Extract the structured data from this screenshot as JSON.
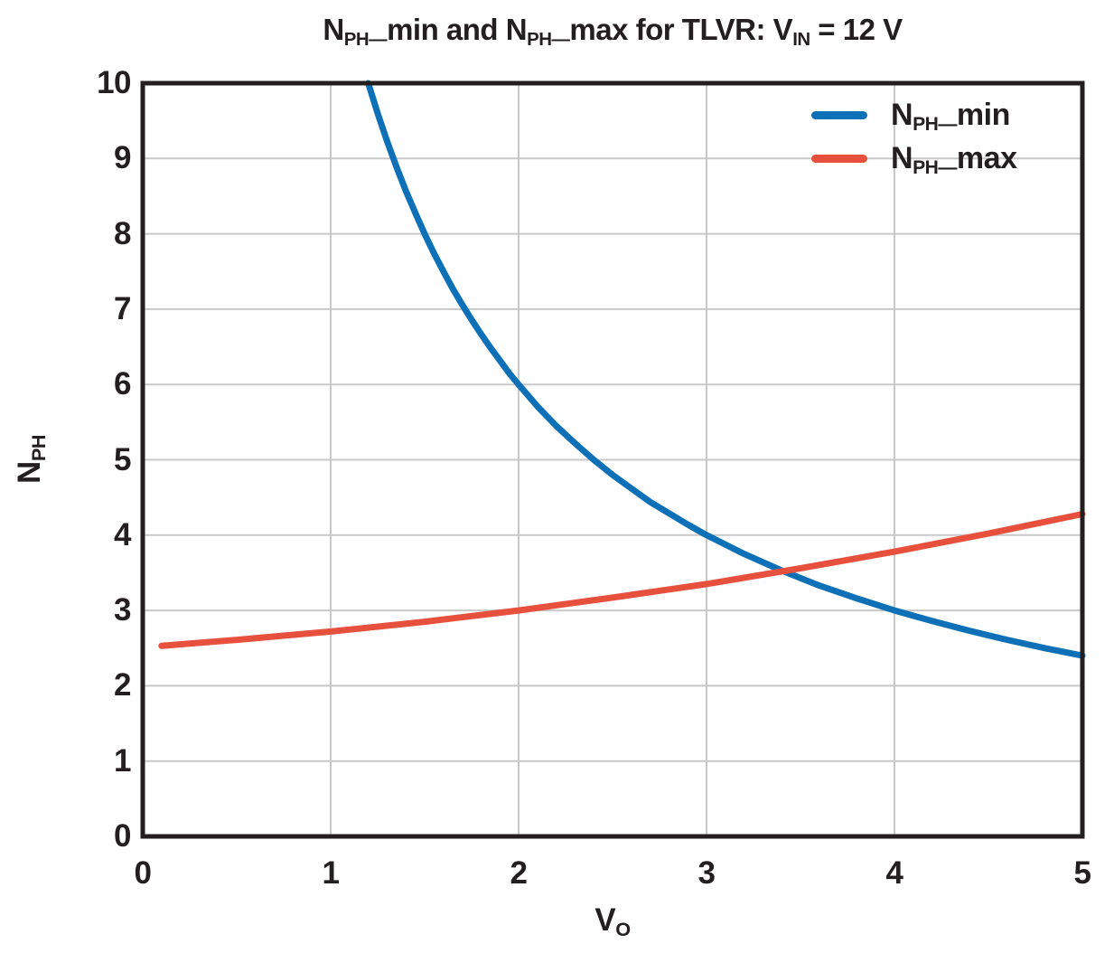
{
  "page": {
    "background": "#ffffff",
    "text_color": "#231f20"
  },
  "chart_data": {
    "type": "line",
    "title_segments": [
      {
        "text": "N"
      },
      {
        "text": "PH—",
        "sub": true
      },
      {
        "text": "min and N"
      },
      {
        "text": "PH—",
        "sub": true
      },
      {
        "text": "max for TLVR: V"
      },
      {
        "text": "IN",
        "sub": true
      },
      {
        "text": " = 12 V"
      }
    ],
    "xlabel_segments": [
      {
        "text": "V"
      },
      {
        "text": "O",
        "sub": true
      }
    ],
    "ylabel_segments": [
      {
        "text": "N"
      },
      {
        "text": "PH",
        "sub": true
      }
    ],
    "xlim": [
      0,
      5
    ],
    "ylim": [
      0,
      10
    ],
    "xticks": [
      0,
      1,
      2,
      3,
      4,
      5
    ],
    "yticks": [
      0,
      1,
      2,
      3,
      4,
      5,
      6,
      7,
      8,
      9,
      10
    ],
    "grid": true,
    "legend_position": "top-right",
    "frame_color": "#231f20",
    "grid_color": "#c8c8c8",
    "series": [
      {
        "name_segments": [
          {
            "text": "N"
          },
          {
            "text": "PH—",
            "sub": true
          },
          {
            "text": "min"
          }
        ],
        "color": "#0e71b8",
        "points": [
          [
            1.2,
            10
          ],
          [
            1.25,
            9.6
          ],
          [
            1.3,
            9.23
          ],
          [
            1.35,
            8.89
          ],
          [
            1.4,
            8.57
          ],
          [
            1.45,
            8.28
          ],
          [
            1.5,
            8.0
          ],
          [
            1.55,
            7.74
          ],
          [
            1.6,
            7.5
          ],
          [
            1.65,
            7.27
          ],
          [
            1.7,
            7.06
          ],
          [
            1.75,
            6.86
          ],
          [
            1.8,
            6.67
          ],
          [
            1.85,
            6.49
          ],
          [
            1.9,
            6.32
          ],
          [
            1.95,
            6.15
          ],
          [
            2.0,
            6.0
          ],
          [
            2.1,
            5.71
          ],
          [
            2.2,
            5.45
          ],
          [
            2.3,
            5.22
          ],
          [
            2.4,
            5.0
          ],
          [
            2.5,
            4.8
          ],
          [
            2.6,
            4.62
          ],
          [
            2.7,
            4.44
          ],
          [
            2.8,
            4.29
          ],
          [
            2.9,
            4.14
          ],
          [
            3.0,
            4.0
          ],
          [
            3.2,
            3.75
          ],
          [
            3.4,
            3.53
          ],
          [
            3.6,
            3.33
          ],
          [
            3.8,
            3.16
          ],
          [
            4.0,
            3.0
          ],
          [
            4.2,
            2.86
          ],
          [
            4.4,
            2.73
          ],
          [
            4.6,
            2.61
          ],
          [
            4.8,
            2.5
          ],
          [
            5.0,
            2.4
          ]
        ]
      },
      {
        "name_segments": [
          {
            "text": "N"
          },
          {
            "text": "PH—",
            "sub": true
          },
          {
            "text": "max"
          }
        ],
        "color": "#e8503e",
        "points": [
          [
            0.1,
            2.53
          ],
          [
            0.5,
            2.61
          ],
          [
            1.0,
            2.72
          ],
          [
            1.5,
            2.85
          ],
          [
            2.0,
            3.0
          ],
          [
            2.5,
            3.17
          ],
          [
            3.0,
            3.35
          ],
          [
            3.5,
            3.56
          ],
          [
            4.0,
            3.78
          ],
          [
            4.5,
            4.02
          ],
          [
            5.0,
            4.28
          ]
        ]
      }
    ]
  }
}
